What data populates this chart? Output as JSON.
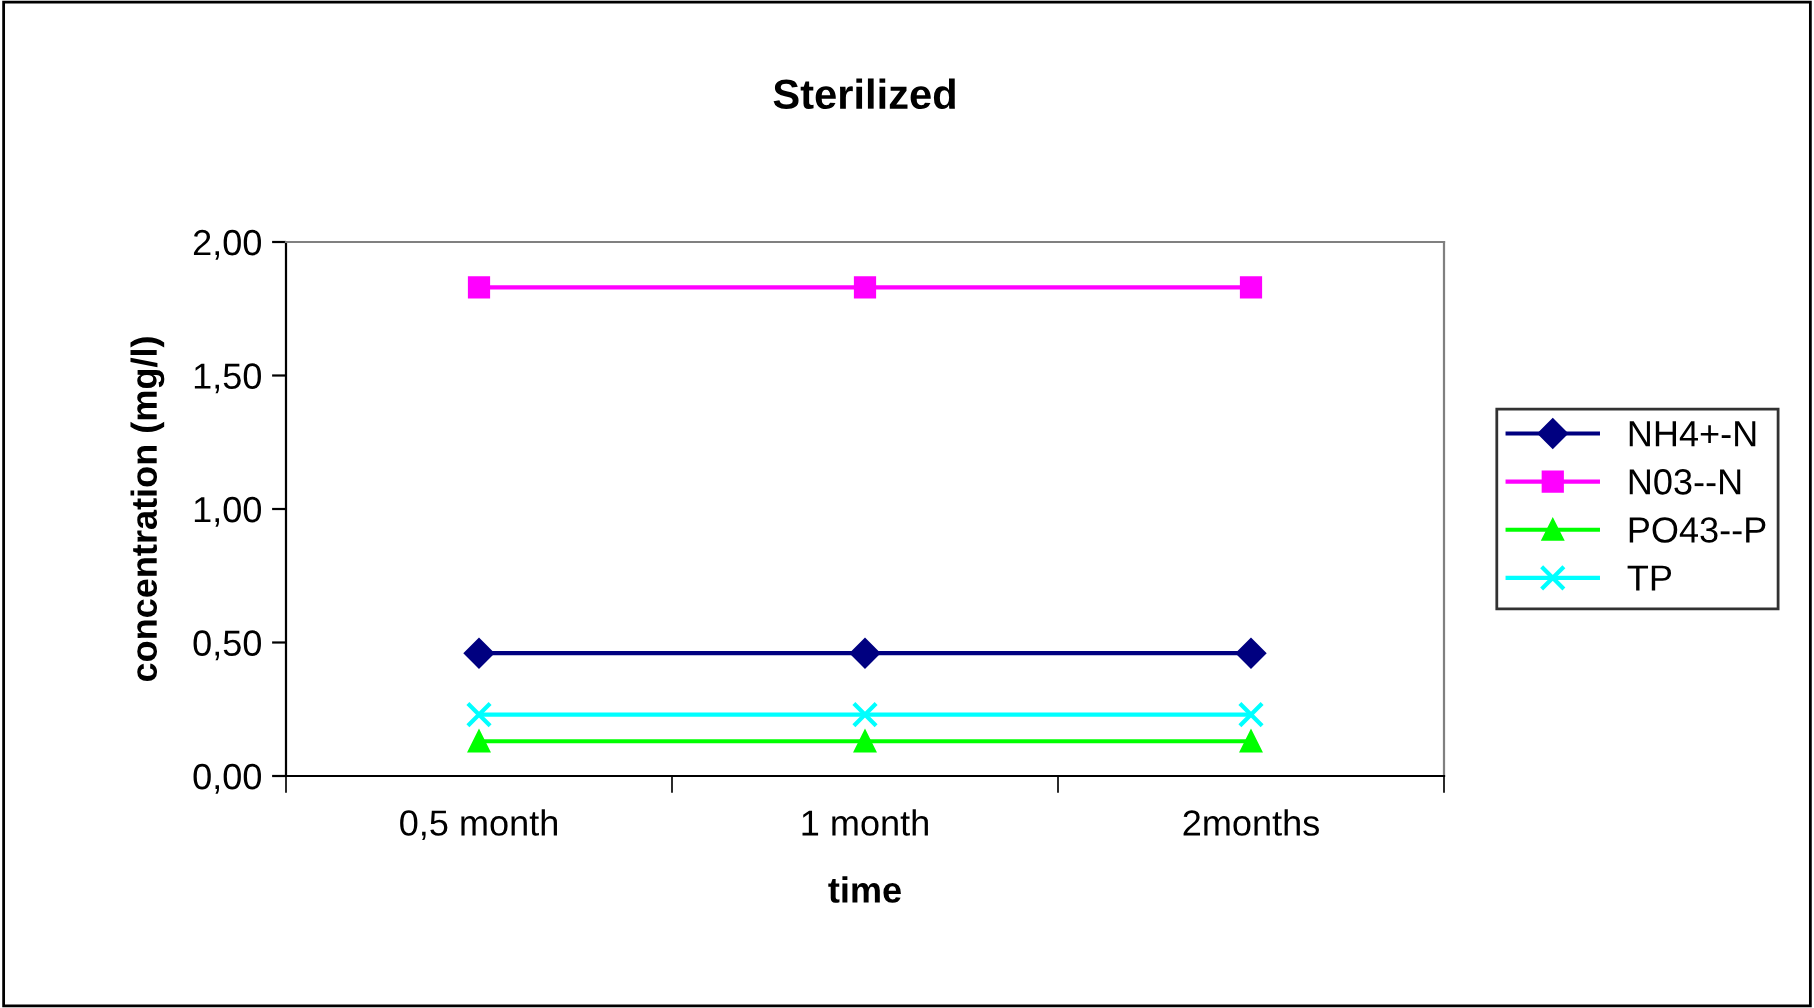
{
  "chart_data": {
    "type": "line",
    "title": "Sterilized",
    "xlabel": "time",
    "ylabel": "concentration (mg/l)",
    "categories": [
      "0,5 month",
      "1 month",
      "2months"
    ],
    "series": [
      {
        "name": "NH4+-N",
        "color": "#000080",
        "marker": "diamond",
        "values": [
          0.46,
          0.46,
          0.46
        ]
      },
      {
        "name": "N03--N",
        "color": "#ff00ff",
        "marker": "square",
        "values": [
          1.83,
          1.83,
          1.83
        ]
      },
      {
        "name": "PO43--P",
        "color": "#00ff00",
        "marker": "triangle",
        "values": [
          0.13,
          0.13,
          0.13
        ]
      },
      {
        "name": "TP",
        "color": "#00ffff",
        "marker": "cross",
        "values": [
          0.23,
          0.23,
          0.23
        ]
      }
    ],
    "ylim": [
      0,
      2
    ],
    "yticks": [
      {
        "value": 0,
        "label": "0,00"
      },
      {
        "value": 0.5,
        "label": "0,50"
      },
      {
        "value": 1,
        "label": "1,00"
      },
      {
        "value": 1.5,
        "label": "1,50"
      },
      {
        "value": 2,
        "label": "2,00"
      }
    ],
    "grid": false,
    "legend": "right",
    "line_style": "solid"
  }
}
